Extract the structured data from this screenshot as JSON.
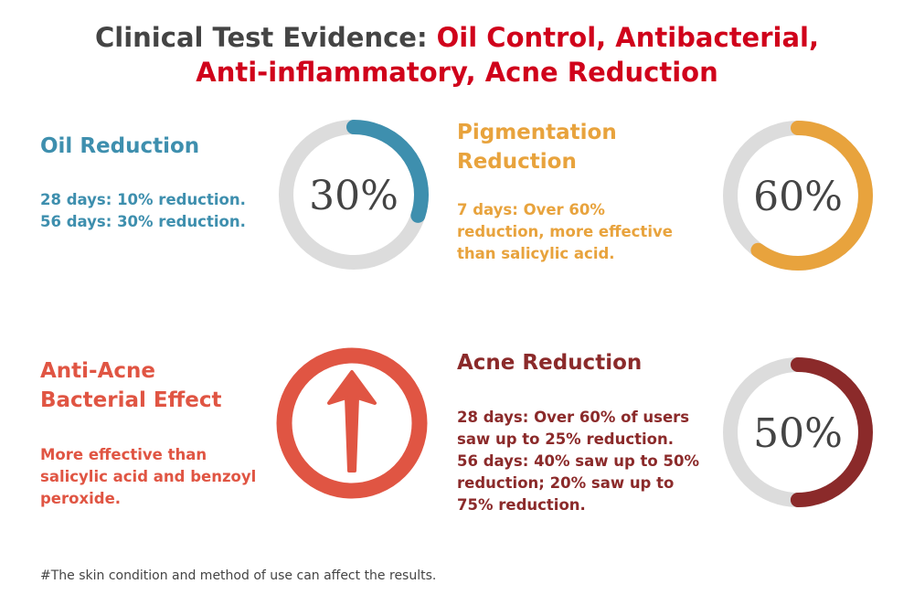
{
  "title": {
    "part1": "Clinical Test Evidence: ",
    "part1_color": "#444444",
    "part2": "Oil Control, Antibacterial,",
    "line2": "Anti-inflammatory, Acne Reduction",
    "accent": "#d0021b"
  },
  "oil": {
    "heading": "Oil Reduction",
    "lines": [
      "28 days: 10% reduction.",
      "56 days: 30% reduction."
    ],
    "value": 30,
    "label": "30%",
    "color": "#3e8fae"
  },
  "pigment": {
    "heading": [
      "Pigmentation",
      "Reduction"
    ],
    "lines": [
      "7 days: Over 60%",
      "reduction, more effective",
      "than salicylic acid."
    ],
    "value": 60,
    "label": "60%",
    "color": "#e8a33d"
  },
  "bacterial": {
    "heading": [
      "Anti-Acne",
      "Bacterial Effect"
    ],
    "lines": [
      "More effective than",
      "salicylic acid and benzoyl",
      "peroxide."
    ],
    "icon": "arrow-up-circle-icon",
    "color": "#e05543"
  },
  "acne": {
    "heading": "Acne Reduction",
    "lines": [
      "28 days: Over 60% of users",
      "saw up to 25% reduction.",
      "56 days: 40% saw up to 50%",
      "reduction; 20% saw up to",
      "75% reduction."
    ],
    "value": 50,
    "label": "50%",
    "color": "#8b2a2a"
  },
  "track_color": "#dcdcdc",
  "footnote": "#The skin condition and method of use can affect the results."
}
